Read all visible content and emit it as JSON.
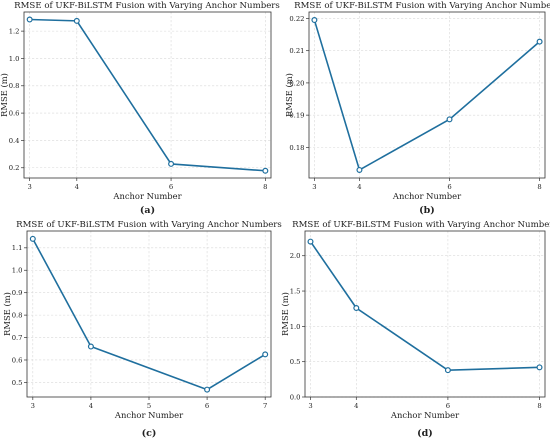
{
  "chart_data": [
    {
      "type": "line",
      "title": "RMSE of UKF-BiLSTM Fusion with Varying Anchor Numbers",
      "xlabel": "Anchor Number",
      "ylabel": "RMSE (m)",
      "caption": "(a)",
      "x": [
        3,
        4,
        6,
        8
      ],
      "y": [
        1.285,
        1.275,
        0.228,
        0.178
      ],
      "xticks": [
        3,
        4,
        6,
        8
      ],
      "yticks": [
        0.2,
        0.4,
        0.6,
        0.8,
        1.0,
        1.2
      ],
      "ytick_labels": [
        "0.2",
        "0.4",
        "0.6",
        "0.8",
        "1.0",
        "1.2"
      ],
      "xlim": [
        2.88,
        8.12
      ],
      "ylim": [
        0.125,
        1.34
      ],
      "grid": true,
      "color": "#1f6f9e"
    },
    {
      "type": "line",
      "title": "RMSE of UKF-BiLSTM Fusion with Varying Anchor Numbers",
      "xlabel": "Anchor Number",
      "ylabel": "RMSE (m)",
      "caption": "(b)",
      "x": [
        3,
        4,
        6,
        8
      ],
      "y": [
        0.2195,
        0.173,
        0.1887,
        0.2128
      ],
      "xticks": [
        3,
        4,
        6,
        8
      ],
      "yticks": [
        0.18,
        0.19,
        0.2,
        0.21,
        0.22
      ],
      "ytick_labels": [
        "0.18",
        "0.19",
        "0.20",
        "0.21",
        "0.22"
      ],
      "xlim": [
        2.88,
        8.12
      ],
      "ylim": [
        0.1705,
        0.222
      ],
      "grid": true,
      "color": "#1f6f9e"
    },
    {
      "type": "line",
      "title": "RMSE of UKF-BiLSTM Fusion with Varying Anchor Numbers",
      "xlabel": "Anchor Number",
      "ylabel": "RMSE (m)",
      "caption": "(c)",
      "x": [
        3,
        4,
        6,
        7
      ],
      "y": [
        1.14,
        0.66,
        0.468,
        0.625
      ],
      "xticks": [
        3,
        4,
        5,
        6,
        7
      ],
      "yticks": [
        0.5,
        0.6,
        0.7,
        0.8,
        0.9,
        1.0,
        1.1
      ],
      "ytick_labels": [
        "0.5",
        "0.6",
        "0.7",
        "0.8",
        "0.9",
        "1.0",
        "1.1"
      ],
      "xlim": [
        2.9,
        7.1
      ],
      "ylim": [
        0.435,
        1.175
      ],
      "grid": true,
      "color": "#1f6f9e"
    },
    {
      "type": "line",
      "title": "RMSE of UKF-BiLSTM Fusion with Varying Anchor Numbers",
      "xlabel": "Anchor Number",
      "ylabel": "RMSE (m)",
      "caption": "(d)",
      "x": [
        3,
        4,
        6,
        8
      ],
      "y": [
        2.2,
        1.26,
        0.38,
        0.42
      ],
      "xticks": [
        3,
        4,
        6,
        8
      ],
      "yticks": [
        0.0,
        0.5,
        1.0,
        1.5,
        2.0
      ],
      "ytick_labels": [
        "0.0",
        "0.5",
        "1.0",
        "1.5",
        "2.0"
      ],
      "xlim": [
        2.88,
        8.12
      ],
      "ylim": [
        0.0,
        2.35
      ],
      "grid": true,
      "color": "#1f6f9e"
    }
  ]
}
